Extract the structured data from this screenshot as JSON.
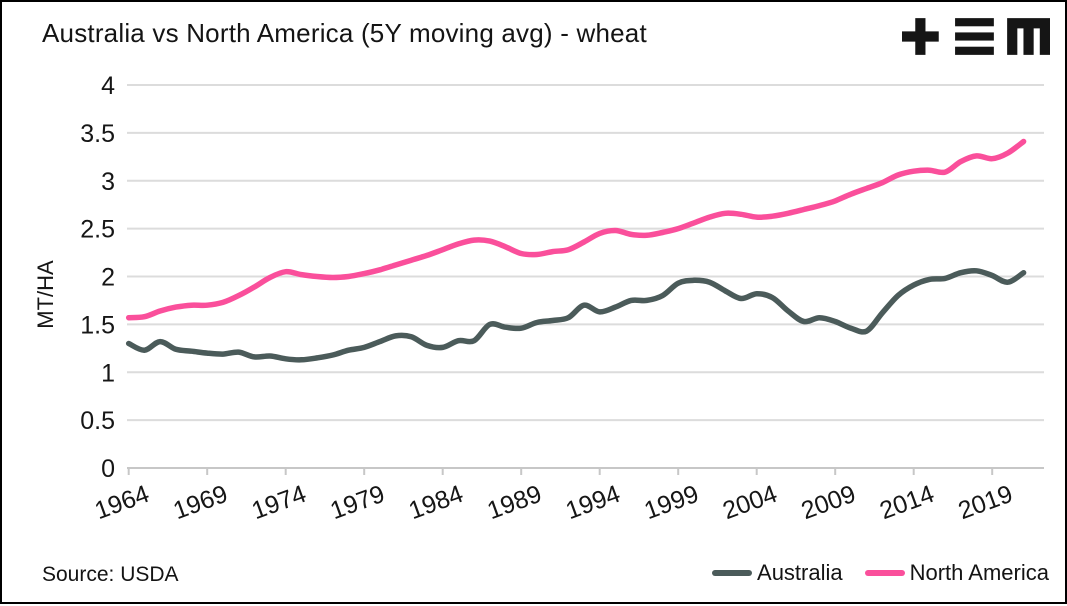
{
  "header": {
    "title": "Australia vs North America (5Y moving avg) - wheat",
    "logo": "tem-logo"
  },
  "footer": {
    "source": "Source: USDA"
  },
  "legend": {
    "items": [
      "Australia",
      "North America"
    ]
  },
  "colors": {
    "australia": "#4b5b5a",
    "north_america": "#fa4f9b",
    "grid": "#dcdcdc",
    "axis": "#c7c7c7",
    "text": "#161616",
    "logo": "#151515",
    "background": "#ffffff",
    "border": "#000000"
  },
  "chart_data": {
    "type": "line",
    "title": "Australia vs North America (5Y moving avg) - wheat",
    "xlabel": "",
    "ylabel": "MT/HA",
    "ylim": [
      0,
      4
    ],
    "xlim": [
      1964,
      2022.5
    ],
    "grid": "horizontal",
    "legend_position": "bottom-right",
    "y_ticks": [
      0,
      0.5,
      1,
      1.5,
      2,
      2.5,
      3,
      3.5,
      4
    ],
    "x_ticks": [
      1964,
      1969,
      1974,
      1979,
      1984,
      1989,
      1994,
      1999,
      2004,
      2009,
      2014,
      2019
    ],
    "x": [
      1964,
      1965,
      1966,
      1967,
      1968,
      1969,
      1970,
      1971,
      1972,
      1973,
      1974,
      1975,
      1976,
      1977,
      1978,
      1979,
      1980,
      1981,
      1982,
      1983,
      1984,
      1985,
      1986,
      1987,
      1988,
      1989,
      1990,
      1991,
      1992,
      1993,
      1994,
      1995,
      1996,
      1997,
      1998,
      1999,
      2000,
      2001,
      2002,
      2003,
      2004,
      2005,
      2006,
      2007,
      2008,
      2009,
      2010,
      2011,
      2012,
      2013,
      2014,
      2015,
      2016,
      2017,
      2018,
      2019,
      2020,
      2021
    ],
    "series": [
      {
        "name": "Australia",
        "color": "#4b5b5a",
        "values": [
          1.3,
          1.23,
          1.32,
          1.24,
          1.22,
          1.2,
          1.19,
          1.21,
          1.16,
          1.17,
          1.14,
          1.13,
          1.15,
          1.18,
          1.23,
          1.26,
          1.32,
          1.38,
          1.37,
          1.28,
          1.26,
          1.33,
          1.33,
          1.5,
          1.47,
          1.46,
          1.52,
          1.54,
          1.57,
          1.7,
          1.63,
          1.68,
          1.75,
          1.75,
          1.8,
          1.93,
          1.96,
          1.94,
          1.85,
          1.77,
          1.82,
          1.78,
          1.64,
          1.53,
          1.57,
          1.53,
          1.46,
          1.43,
          1.62,
          1.8,
          1.91,
          1.97,
          1.98,
          2.04,
          2.06,
          2.01,
          1.94,
          2.04
        ]
      },
      {
        "name": "North America",
        "color": "#fa4f9b",
        "values": [
          1.57,
          1.58,
          1.64,
          1.68,
          1.7,
          1.7,
          1.73,
          1.8,
          1.89,
          1.99,
          2.05,
          2.02,
          2.0,
          1.99,
          2.0,
          2.03,
          2.07,
          2.12,
          2.17,
          2.22,
          2.28,
          2.34,
          2.38,
          2.37,
          2.31,
          2.24,
          2.23,
          2.26,
          2.28,
          2.36,
          2.45,
          2.48,
          2.44,
          2.43,
          2.46,
          2.5,
          2.56,
          2.62,
          2.66,
          2.65,
          2.62,
          2.63,
          2.66,
          2.7,
          2.74,
          2.79,
          2.86,
          2.92,
          2.98,
          3.06,
          3.1,
          3.11,
          3.09,
          3.2,
          3.26,
          3.23,
          3.29,
          3.41
        ]
      }
    ]
  }
}
